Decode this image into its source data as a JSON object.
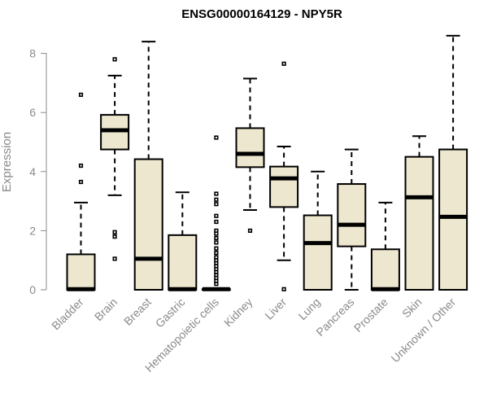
{
  "chart_data": {
    "type": "box",
    "title": "ENSG00000164129 - NPY5R",
    "xlabel": "",
    "ylabel": "Expression",
    "ylim": [
      0,
      8.6
    ],
    "yticks": [
      0,
      2,
      4,
      6,
      8
    ],
    "grid": false,
    "colors": {
      "box_fill": "#ede7cf",
      "box_stroke": "#000000",
      "axis": "#8a8a8a"
    },
    "categories": [
      "Bladder",
      "Brain",
      "Breast",
      "Gastric",
      "Hematopoietic cells",
      "Kidney",
      "Liver",
      "Lung",
      "Pancreas",
      "Prostate",
      "Skin",
      "Unknown / Other"
    ],
    "boxes": [
      {
        "category": "Bladder",
        "whisker_low": 0,
        "q1": 0,
        "median": 0.02,
        "q3": 1.2,
        "whisker_high": 2.95,
        "outliers": [
          3.65,
          4.2,
          6.6
        ]
      },
      {
        "category": "Brain",
        "whisker_low": 3.2,
        "q1": 4.75,
        "median": 5.4,
        "q3": 5.92,
        "whisker_high": 7.25,
        "outliers": [
          1.05,
          1.8,
          1.95,
          7.8
        ]
      },
      {
        "category": "Breast",
        "whisker_low": 0,
        "q1": 0,
        "median": 1.05,
        "q3": 4.42,
        "whisker_high": 8.4,
        "outliers": []
      },
      {
        "category": "Gastric",
        "whisker_low": 0,
        "q1": 0,
        "median": 0.02,
        "q3": 1.85,
        "whisker_high": 3.3,
        "outliers": []
      },
      {
        "category": "Hematopoietic cells",
        "whisker_low": 0,
        "q1": 0,
        "median": 0.02,
        "q3": 0.02,
        "whisker_high": 0.02,
        "outliers": [
          0.2,
          0.3,
          0.4,
          0.5,
          0.6,
          0.7,
          0.8,
          0.9,
          1.0,
          1.1,
          1.25,
          1.4,
          1.6,
          1.75,
          1.9,
          2.0,
          2.3,
          2.5,
          2.9,
          3.05,
          3.25,
          5.15
        ]
      },
      {
        "category": "Kidney",
        "whisker_low": 2.7,
        "q1": 4.15,
        "median": 4.6,
        "q3": 5.47,
        "whisker_high": 7.15,
        "outliers": [
          2.0
        ]
      },
      {
        "category": "Liver",
        "whisker_low": 1.0,
        "q1": 2.8,
        "median": 3.77,
        "q3": 4.17,
        "whisker_high": 4.85,
        "outliers": [
          0.02,
          7.65
        ]
      },
      {
        "category": "Lung",
        "whisker_low": 0,
        "q1": 0,
        "median": 1.58,
        "q3": 2.52,
        "whisker_high": 4.0,
        "outliers": []
      },
      {
        "category": "Pancreas",
        "whisker_low": 0,
        "q1": 1.47,
        "median": 2.2,
        "q3": 3.58,
        "whisker_high": 4.75,
        "outliers": []
      },
      {
        "category": "Prostate",
        "whisker_low": 0,
        "q1": 0,
        "median": 0.02,
        "q3": 1.37,
        "whisker_high": 2.95,
        "outliers": []
      },
      {
        "category": "Skin",
        "whisker_low": 0,
        "q1": 0,
        "median": 3.13,
        "q3": 4.5,
        "whisker_high": 5.2,
        "outliers": []
      },
      {
        "category": "Unknown / Other",
        "whisker_low": 0,
        "q1": 0,
        "median": 2.47,
        "q3": 4.75,
        "whisker_high": 8.6,
        "outliers": []
      }
    ]
  }
}
